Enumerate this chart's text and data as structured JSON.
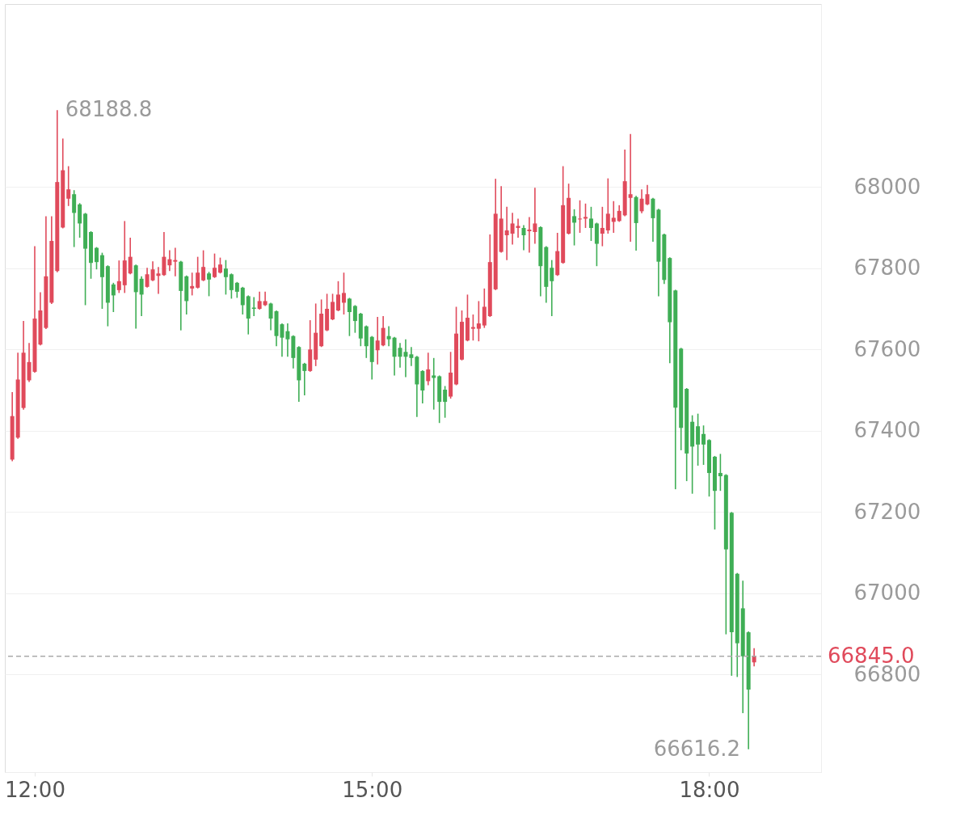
{
  "chart_data": {
    "type": "candlestick",
    "x": [
      11.8,
      11.85,
      11.9,
      11.95,
      12.0,
      12.05,
      12.1,
      12.15,
      12.2,
      12.25,
      12.3,
      12.35,
      12.4,
      12.45,
      12.5,
      12.55,
      12.6,
      12.65,
      12.7,
      12.75,
      12.8,
      12.85,
      12.9,
      12.95,
      13.0,
      13.05,
      13.1,
      13.15,
      13.2,
      13.25,
      13.3,
      13.35,
      13.4,
      13.45,
      13.5,
      13.55,
      13.6,
      13.65,
      13.7,
      13.75,
      13.8,
      13.85,
      13.9,
      13.95,
      14.0,
      14.05,
      14.1,
      14.15,
      14.2,
      14.25,
      14.3,
      14.35,
      14.4,
      14.45,
      14.5,
      14.55,
      14.6,
      14.65,
      14.7,
      14.75,
      14.8,
      14.85,
      14.9,
      14.95,
      15.0,
      15.05,
      15.1,
      15.15,
      15.2,
      15.25,
      15.3,
      15.35,
      15.4,
      15.45,
      15.5,
      15.55,
      15.6,
      15.65,
      15.7,
      15.75,
      15.8,
      15.85,
      15.9,
      15.95,
      16.0,
      16.05,
      16.1,
      16.15,
      16.2,
      16.25,
      16.3,
      16.35,
      16.4,
      16.45,
      16.5,
      16.55,
      16.6,
      16.65,
      16.7,
      16.75,
      16.8,
      16.85,
      16.9,
      16.95,
      17.0,
      17.05,
      17.1,
      17.15,
      17.2,
      17.25,
      17.3,
      17.35,
      17.4,
      17.45,
      17.5,
      17.55,
      17.6,
      17.65,
      17.7,
      17.75,
      17.8,
      17.85,
      17.9,
      17.95,
      18.0,
      18.05,
      18.1,
      18.15,
      18.2,
      18.25,
      18.3,
      18.35,
      18.4
    ],
    "ohlc": [
      [
        67329,
        67495,
        67325,
        67436
      ],
      [
        67383,
        67592,
        67380,
        67526
      ],
      [
        67456,
        67670,
        67452,
        67592
      ],
      [
        67524,
        67616,
        67520,
        67569
      ],
      [
        67545,
        67854,
        67543,
        67676
      ],
      [
        67612,
        67741,
        67610,
        67696
      ],
      [
        67653,
        67928,
        67650,
        67780
      ],
      [
        67715,
        67928,
        67712,
        67867
      ],
      [
        67793,
        68188.8,
        67790,
        68012
      ],
      [
        67900,
        68119,
        67898,
        68041
      ],
      [
        67971,
        68051,
        67953,
        67994
      ],
      [
        67982,
        67992,
        67852,
        67936
      ],
      [
        67957,
        67960,
        67875,
        67910
      ],
      [
        67934,
        67936,
        67709,
        67848
      ],
      [
        67889,
        67891,
        67774,
        67813
      ],
      [
        67850,
        67852,
        67797,
        67815
      ],
      [
        67832,
        67838,
        67700,
        67778
      ],
      [
        67805,
        67807,
        67657,
        67715
      ],
      [
        67760,
        67764,
        67692,
        67733
      ],
      [
        67746,
        67819,
        67739,
        67768
      ],
      [
        67758,
        67916,
        67739,
        67819
      ],
      [
        67787,
        67875,
        67785,
        67828
      ],
      [
        67807,
        67809,
        67651,
        67741
      ],
      [
        67774,
        67780,
        67682,
        67735
      ],
      [
        67754,
        67801,
        67752,
        67785
      ],
      [
        67770,
        67817,
        67768,
        67797
      ],
      [
        67781,
        67803,
        67737,
        67787
      ],
      [
        67783,
        67889,
        67781,
        67828
      ],
      [
        67807,
        67844,
        67793,
        67822
      ],
      [
        67816,
        67850,
        67780,
        67820
      ],
      [
        67816,
        67818,
        67647,
        67744
      ],
      [
        67780,
        67782,
        67686,
        67719
      ],
      [
        67750,
        67789,
        67733,
        67756
      ],
      [
        67752,
        67828,
        67750,
        67789
      ],
      [
        67770,
        67844,
        67768,
        67803
      ],
      [
        67787,
        67791,
        67731,
        67772
      ],
      [
        67778,
        67836,
        67776,
        67801
      ],
      [
        67789,
        67826,
        67787,
        67809
      ],
      [
        67799,
        67820,
        67735,
        67778
      ],
      [
        67785,
        67787,
        67725,
        67746
      ],
      [
        67764,
        67766,
        67727,
        67742
      ],
      [
        67752,
        67754,
        67686,
        67709
      ],
      [
        67731,
        67733,
        67637,
        67676
      ],
      [
        67703,
        67729,
        67682,
        67700
      ],
      [
        67700,
        67742,
        67698,
        67719
      ],
      [
        67709,
        67742,
        67707,
        67719
      ],
      [
        67713,
        67715,
        67647,
        67676
      ],
      [
        67694,
        67696,
        67608,
        67633
      ],
      [
        67662,
        67664,
        67582,
        67629
      ],
      [
        67645,
        67664,
        67582,
        67625
      ],
      [
        67633,
        67635,
        67553,
        67579
      ],
      [
        67606,
        67608,
        67471,
        67524
      ],
      [
        67565,
        67567,
        67487,
        67547
      ],
      [
        67547,
        67672,
        67545,
        67600
      ],
      [
        67575,
        67713,
        67559,
        67641
      ],
      [
        67608,
        67723,
        67606,
        67688
      ],
      [
        67647,
        67737,
        67645,
        67700
      ],
      [
        67674,
        67737,
        67672,
        67717
      ],
      [
        67696,
        67768,
        67694,
        67735
      ],
      [
        67715,
        67789,
        67686,
        67739
      ],
      [
        67725,
        67727,
        67633,
        67692
      ],
      [
        67707,
        67709,
        67641,
        67670
      ],
      [
        67688,
        67690,
        67608,
        67627
      ],
      [
        67657,
        67659,
        67579,
        67608
      ],
      [
        67631,
        67633,
        67526,
        67569
      ],
      [
        67598,
        67680,
        67563,
        67622
      ],
      [
        67610,
        67682,
        67608,
        67653
      ],
      [
        67633,
        67657,
        67608,
        67625
      ],
      [
        67629,
        67631,
        67536,
        67582
      ],
      [
        67604,
        67616,
        67555,
        67582
      ],
      [
        67594,
        67625,
        67532,
        67582
      ],
      [
        67588,
        67606,
        67559,
        67579
      ],
      [
        67582,
        67584,
        67434,
        67514
      ],
      [
        67547,
        67549,
        67467,
        67499
      ],
      [
        67522,
        67592,
        67512,
        67551
      ],
      [
        67536,
        67579,
        67452,
        67530
      ],
      [
        67534,
        67536,
        67419,
        67471
      ],
      [
        67501,
        67510,
        67432,
        67471
      ],
      [
        67484,
        67594,
        67479,
        67543
      ],
      [
        67514,
        67705,
        67512,
        67639
      ],
      [
        67575,
        67696,
        67573,
        67668
      ],
      [
        67622,
        67735,
        67620,
        67678
      ],
      [
        67651,
        67686,
        67622,
        67655
      ],
      [
        67651,
        67719,
        67620,
        67664
      ],
      [
        67659,
        67750,
        67653,
        67705
      ],
      [
        67682,
        67883,
        67680,
        67815
      ],
      [
        67748,
        68020,
        67746,
        67934
      ],
      [
        67840,
        68002,
        67838,
        67922
      ],
      [
        67881,
        67951,
        67820,
        67893
      ],
      [
        67885,
        67936,
        67858,
        67910
      ],
      [
        67899,
        67922,
        67875,
        67904
      ],
      [
        67899,
        67906,
        67844,
        67881
      ],
      [
        67891,
        67926,
        67838,
        67895
      ],
      [
        67889,
        67998,
        67860,
        67910
      ],
      [
        67901,
        67903,
        67731,
        67805
      ],
      [
        67852,
        67854,
        67715,
        67754
      ],
      [
        67801,
        67820,
        67682,
        67768
      ],
      [
        67783,
        67887,
        67781,
        67842
      ],
      [
        67813,
        68051,
        67811,
        67955
      ],
      [
        67885,
        68008,
        67883,
        67973
      ],
      [
        67928,
        67945,
        67856,
        67912
      ],
      [
        67920,
        67967,
        67887,
        67922
      ],
      [
        67922,
        67959,
        67899,
        67926
      ],
      [
        67922,
        67951,
        67867,
        67899
      ],
      [
        67910,
        67912,
        67805,
        67860
      ],
      [
        67885,
        67951,
        67854,
        67899
      ],
      [
        67893,
        68021,
        67885,
        67934
      ],
      [
        67914,
        67965,
        67887,
        67924
      ],
      [
        67916,
        67955,
        67914,
        67941
      ],
      [
        67930,
        68092,
        67928,
        68014
      ],
      [
        67973,
        68130,
        67865,
        67982
      ],
      [
        67975,
        67978,
        67843,
        67911
      ],
      [
        67940,
        67994,
        67935,
        67971
      ],
      [
        67957,
        68005,
        67955,
        67982
      ],
      [
        67971,
        67973,
        67865,
        67923
      ],
      [
        67944,
        67946,
        67731,
        67816
      ],
      [
        67883,
        67885,
        67761,
        67771
      ],
      [
        67825,
        67827,
        67566,
        67667
      ],
      [
        67745,
        67747,
        67256,
        67457
      ],
      [
        67602,
        67604,
        67352,
        67407
      ],
      [
        67503,
        67505,
        67276,
        67344
      ],
      [
        67422,
        67438,
        67245,
        67361
      ],
      [
        67411,
        67442,
        67314,
        67366
      ],
      [
        67392,
        67413,
        67316,
        67366
      ],
      [
        67377,
        67379,
        67238,
        67296
      ],
      [
        67336,
        67338,
        67157,
        67252
      ],
      [
        67296,
        67343,
        67252,
        67288
      ],
      [
        67291,
        67293,
        66899,
        67108
      ],
      [
        67198,
        67200,
        66797,
        66904
      ],
      [
        67048,
        67050,
        66794,
        66877
      ],
      [
        66963,
        67031,
        66705,
        66845
      ],
      [
        66904,
        66906,
        66616.2,
        66763
      ],
      [
        66830,
        66865,
        66820,
        66845
      ]
    ],
    "colors": [
      "#e04a5b",
      "#e04a5b",
      "#e04a5b",
      "#e04a5b",
      "#e04a5b",
      "#e04a5b",
      "#e04a5b",
      "#e04a5b",
      "#e04a5b",
      "#e04a5b",
      "#e04a5b",
      "#3fae55",
      "#3fae55",
      "#3fae55",
      "#3fae55",
      "#3fae55",
      "#3fae55",
      "#3fae55",
      "#3fae55",
      "#e04a5b",
      "#e04a5b",
      "#e04a5b",
      "#3fae55",
      "#3fae55",
      "#e04a5b",
      "#e04a5b",
      "#e04a5b",
      "#e04a5b",
      "#e04a5b",
      "#e04a5b",
      "#3fae55",
      "#3fae55",
      "#e04a5b",
      "#e04a5b",
      "#e04a5b",
      "#3fae55",
      "#e04a5b",
      "#e04a5b",
      "#3fae55",
      "#3fae55",
      "#3fae55",
      "#3fae55",
      "#3fae55",
      "#3fae55",
      "#e04a5b",
      "#e04a5b",
      "#3fae55",
      "#3fae55",
      "#3fae55",
      "#3fae55",
      "#3fae55",
      "#3fae55",
      "#3fae55",
      "#e04a5b",
      "#e04a5b",
      "#e04a5b",
      "#e04a5b",
      "#e04a5b",
      "#e04a5b",
      "#e04a5b",
      "#3fae55",
      "#3fae55",
      "#3fae55",
      "#3fae55",
      "#3fae55",
      "#e04a5b",
      "#e04a5b",
      "#3fae55",
      "#3fae55",
      "#3fae55",
      "#3fae55",
      "#3fae55",
      "#3fae55",
      "#3fae55",
      "#e04a5b",
      "#3fae55",
      "#3fae55",
      "#3fae55",
      "#e04a5b",
      "#e04a5b",
      "#e04a5b",
      "#e04a5b",
      "#e04a5b",
      "#e04a5b",
      "#e04a5b",
      "#e04a5b",
      "#e04a5b",
      "#e04a5b",
      "#e04a5b",
      "#e04a5b",
      "#e04a5b",
      "#3fae55",
      "#e04a5b",
      "#e04a5b",
      "#3fae55",
      "#3fae55",
      "#3fae55",
      "#e04a5b",
      "#e04a5b",
      "#e04a5b",
      "#3fae55",
      "#e04a5b",
      "#e04a5b",
      "#3fae55",
      "#3fae55",
      "#e04a5b",
      "#e04a5b",
      "#e04a5b",
      "#e04a5b",
      "#e04a5b",
      "#e04a5b",
      "#3fae55",
      "#e04a5b",
      "#e04a5b",
      "#3fae55",
      "#3fae55",
      "#3fae55",
      "#3fae55",
      "#3fae55",
      "#3fae55",
      "#3fae55",
      "#3fae55",
      "#3fae55",
      "#3fae55",
      "#3fae55",
      "#3fae55",
      "#3fae55",
      "#3fae55",
      "#3fae55",
      "#3fae55",
      "#3fae55",
      "#3fae55",
      "#e04a5b"
    ],
    "xlim": [
      11.77,
      18.96
    ],
    "xticks": [
      {
        "value": 12,
        "label": "12:00"
      },
      {
        "value": 15,
        "label": "15:00"
      },
      {
        "value": 18,
        "label": "18:00"
      }
    ],
    "ylim": [
      66560,
      68450
    ],
    "yticks": [
      66800,
      67000,
      67200,
      67400,
      67600,
      67800,
      68000
    ],
    "grid": "y",
    "ref_lines": [
      {
        "axis": "y",
        "value": 66845.0,
        "label": "66845.0",
        "color": "#aaaaaa",
        "line_style": "dashed"
      }
    ],
    "annotations": [
      {
        "text": "68188.8",
        "x": 12.2,
        "y": 68188.8
      },
      {
        "text": "66616.2",
        "x": 18.35,
        "y": 66616.2
      }
    ]
  }
}
